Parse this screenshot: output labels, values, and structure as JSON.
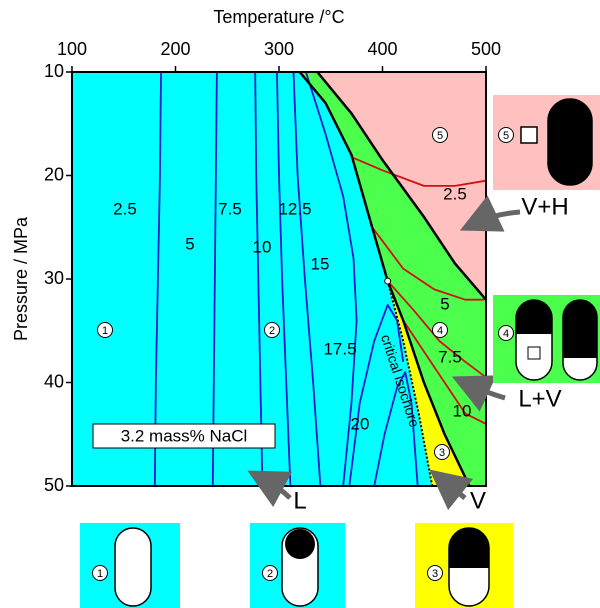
{
  "chart_data": {
    "type": "contour",
    "x_label": "Temperature /°C",
    "y_label": "Pressure / MPa",
    "xlim": [
      100,
      500
    ],
    "ylim": [
      10,
      50
    ],
    "y_inverted": true,
    "xticks": [
      100,
      200,
      300,
      400,
      500
    ],
    "yticks": [
      10,
      20,
      30,
      40,
      50
    ],
    "annotation": "3.2 mass% NaCl",
    "regions": [
      {
        "name": "L",
        "color": "#00ffff"
      },
      {
        "name": "V+H",
        "color": "#ffc0c0",
        "x": [
          337,
          370,
          400,
          440,
          470,
          500,
          500
        ],
        "y": [
          10,
          14,
          18.5,
          24,
          28.5,
          32,
          10
        ]
      },
      {
        "name": "L+V",
        "color": "#4cff4c",
        "x": [
          320,
          345,
          370,
          390,
          405,
          420,
          440,
          460,
          484,
          500,
          500,
          470,
          440,
          400,
          370,
          337
        ],
        "y": [
          10,
          13,
          18,
          25,
          30.2,
          34,
          40,
          45,
          50,
          50,
          32,
          28.5,
          24,
          18.5,
          14,
          10
        ]
      },
      {
        "name": "V",
        "color": "#ffff00",
        "x": [
          405,
          420,
          435,
          448,
          484,
          460,
          440,
          420
        ],
        "y": [
          30.2,
          36,
          43,
          50,
          50,
          45,
          40,
          34
        ]
      }
    ],
    "boundaries": [
      {
        "x": [
          320,
          345,
          370,
          390,
          405,
          420,
          440,
          460,
          484
        ],
        "y": [
          10,
          13,
          18,
          25,
          30.2,
          34,
          40,
          45,
          50
        ]
      },
      {
        "x": [
          337,
          370,
          400,
          440,
          470,
          500
        ],
        "y": [
          10,
          14,
          18.5,
          24,
          28.5,
          32
        ]
      }
    ],
    "critical_isochore": {
      "name": "critical isochore",
      "x": [
        405,
        420,
        435,
        448
      ],
      "y": [
        30.2,
        36,
        43,
        50
      ]
    },
    "critical_point": {
      "x": 405,
      "y": 30.2
    },
    "contours": [
      {
        "level": 2.5,
        "color": "#1a1ad0",
        "x": [
          186,
          185,
          183,
          181,
          180
        ],
        "y": [
          10,
          20,
          30,
          40,
          50
        ]
      },
      {
        "level": 5,
        "color": "#1a1ad0",
        "x": [
          240,
          239,
          238,
          237,
          236
        ],
        "y": [
          10,
          20,
          30,
          40,
          50
        ]
      },
      {
        "level": 7.5,
        "color": "#1a1ad0",
        "x": [
          277,
          278,
          280,
          282,
          284
        ],
        "y": [
          10,
          20,
          30,
          40,
          50
        ]
      },
      {
        "level": 10,
        "color": "#1a1ad0",
        "x": [
          298,
          300,
          303,
          307,
          311
        ],
        "y": [
          10,
          20,
          30,
          40,
          50
        ]
      },
      {
        "level": 12.5,
        "color": "#1a1ad0",
        "x": [
          314,
          318,
          325,
          333,
          340
        ],
        "y": [
          10,
          20,
          30,
          40,
          50
        ]
      },
      {
        "level": 15,
        "color": "#1a1ad0",
        "x": [
          326,
          345,
          362,
          372,
          375,
          370,
          362
        ],
        "y": [
          10,
          16,
          22,
          28,
          34,
          42,
          50
        ]
      },
      {
        "level": 17.5,
        "color": "#1a1ad0",
        "x": [
          368,
          378,
          392,
          405,
          414,
          420
        ],
        "y": [
          50,
          42,
          36,
          32.5,
          34,
          38
        ]
      },
      {
        "level": 20,
        "color": "#1a1ad0",
        "x": [
          392,
          402,
          414,
          422,
          428,
          434
        ],
        "y": [
          50,
          45,
          40.5,
          39,
          42,
          50
        ]
      },
      {
        "level": 2.5,
        "color": "#d01010",
        "x": [
          372,
          400,
          440,
          470,
          500
        ],
        "y": [
          18.3,
          19.5,
          21,
          21,
          20.5
        ]
      },
      {
        "level": 5,
        "color": "#d01010",
        "x": [
          390,
          420,
          450,
          480,
          498
        ],
        "y": [
          25,
          29,
          31,
          32,
          32
        ]
      },
      {
        "level": 7.5,
        "color": "#d01010",
        "x": [
          405,
          430,
          455,
          480,
          500
        ],
        "y": [
          30.2,
          33,
          36,
          38,
          39.5
        ]
      },
      {
        "level": 10,
        "color": "#d01010",
        "x": [
          420,
          440,
          460,
          480,
          500
        ],
        "y": [
          34,
          37,
          40,
          43,
          44
        ]
      }
    ],
    "fields": [
      "1",
      "2",
      "3",
      "4",
      "5"
    ],
    "insets": [
      {
        "label": "5",
        "color": "#ffc0c0"
      },
      {
        "label": "4",
        "color": "#4cff4c"
      },
      {
        "label": "1",
        "color": "#00ffff"
      },
      {
        "label": "2",
        "color": "#00ffff"
      },
      {
        "label": "3",
        "color": "#ffff00"
      }
    ]
  }
}
